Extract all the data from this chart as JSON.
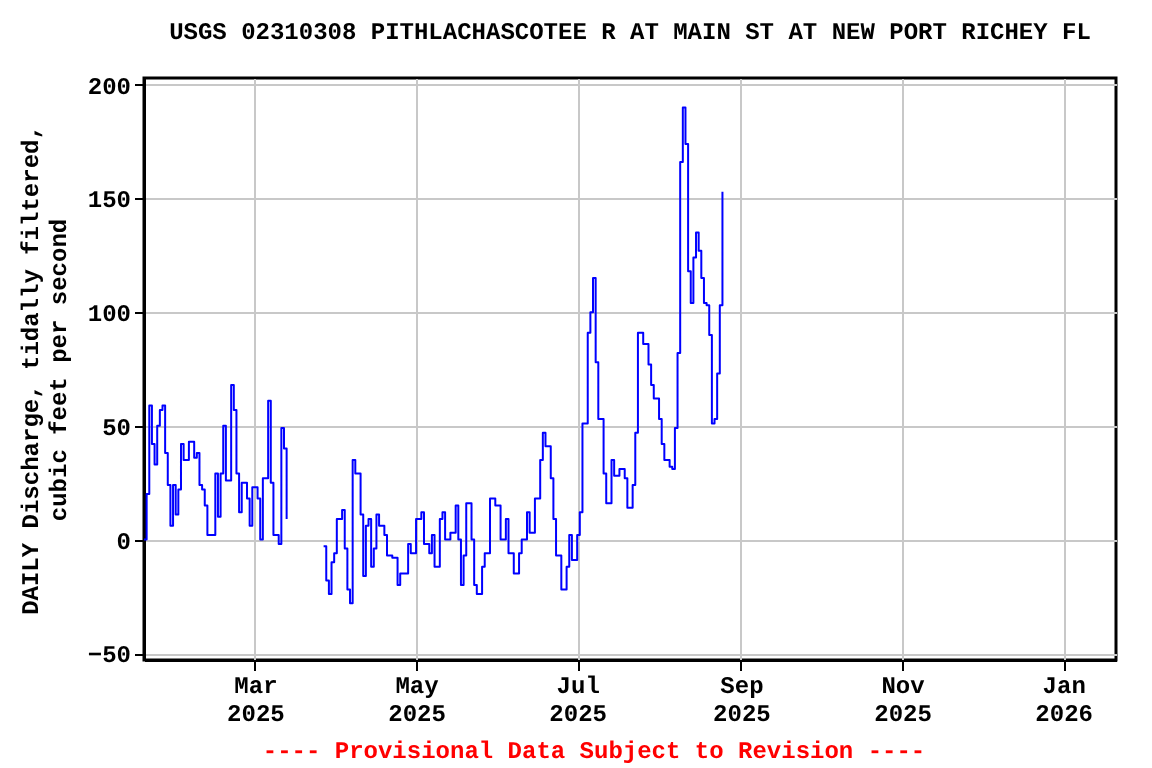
{
  "chart_data": {
    "type": "step",
    "title": "USGS 02310308 PITHLACHASCOTEE R AT MAIN ST AT NEW PORT RICHEY FL",
    "ylabel": "DAILY Discharge, tidally filtered,\ncubic feet per second",
    "annotations": [
      "---- Provisional Data Subject to Revision ----"
    ],
    "x": [
      "2025-01-18",
      "2025-01-19",
      "2025-01-20",
      "2025-01-21",
      "2025-01-22",
      "2025-01-23",
      "2025-01-24",
      "2025-01-25",
      "2025-01-26",
      "2025-01-27",
      "2025-01-28",
      "2025-01-29",
      "2025-01-30",
      "2025-01-31",
      "2025-02-01",
      "2025-02-02",
      "2025-02-04",
      "2025-02-06",
      "2025-02-07",
      "2025-02-08",
      "2025-02-09",
      "2025-02-10",
      "2025-02-11",
      "2025-02-13",
      "2025-02-14",
      "2025-02-15",
      "2025-02-16",
      "2025-02-17",
      "2025-02-18",
      "2025-02-20",
      "2025-02-21",
      "2025-02-22",
      "2025-02-23",
      "2025-02-24",
      "2025-02-26",
      "2025-02-27",
      "2025-02-28",
      "2025-03-02",
      "2025-03-03",
      "2025-03-04",
      "2025-03-06",
      "2025-03-07",
      "2025-03-08",
      "2025-03-10",
      "2025-03-11",
      "2025-03-12",
      "2025-03-13",
      "2025-03-20",
      "2025-03-27",
      "2025-03-28",
      "2025-03-29",
      "2025-03-30",
      "2025-03-31",
      "2025-04-01",
      "2025-04-03",
      "2025-04-04",
      "2025-04-05",
      "2025-04-06",
      "2025-04-07",
      "2025-04-08",
      "2025-04-10",
      "2025-04-11",
      "2025-04-12",
      "2025-04-13",
      "2025-04-14",
      "2025-04-15",
      "2025-04-16",
      "2025-04-17",
      "2025-04-19",
      "2025-04-20",
      "2025-04-22",
      "2025-04-24",
      "2025-04-25",
      "2025-04-28",
      "2025-04-29",
      "2025-05-01",
      "2025-05-03",
      "2025-05-04",
      "2025-05-06",
      "2025-05-07",
      "2025-05-08",
      "2025-05-10",
      "2025-05-11",
      "2025-05-12",
      "2025-05-14",
      "2025-05-16",
      "2025-05-17",
      "2025-05-18",
      "2025-05-19",
      "2025-05-20",
      "2025-05-22",
      "2025-05-23",
      "2025-05-24",
      "2025-05-26",
      "2025-05-27",
      "2025-05-29",
      "2025-05-31",
      "2025-06-02",
      "2025-06-04",
      "2025-06-05",
      "2025-06-07",
      "2025-06-09",
      "2025-06-10",
      "2025-06-12",
      "2025-06-13",
      "2025-06-15",
      "2025-06-17",
      "2025-06-18",
      "2025-06-19",
      "2025-06-21",
      "2025-06-22",
      "2025-06-23",
      "2025-06-25",
      "2025-06-27",
      "2025-06-28",
      "2025-06-29",
      "2025-07-01",
      "2025-07-02",
      "2025-07-03",
      "2025-07-05",
      "2025-07-06",
      "2025-07-07",
      "2025-07-08",
      "2025-07-09",
      "2025-07-11",
      "2025-07-12",
      "2025-07-14",
      "2025-07-15",
      "2025-07-17",
      "2025-07-19",
      "2025-07-20",
      "2025-07-22",
      "2025-07-23",
      "2025-07-24",
      "2025-07-25",
      "2025-07-26",
      "2025-07-28",
      "2025-07-29",
      "2025-07-30",
      "2025-08-01",
      "2025-08-02",
      "2025-08-03",
      "2025-08-05",
      "2025-08-06",
      "2025-08-07",
      "2025-08-08",
      "2025-08-09",
      "2025-08-10",
      "2025-08-11",
      "2025-08-12",
      "2025-08-13",
      "2025-08-14",
      "2025-08-15",
      "2025-08-16",
      "2025-08-17",
      "2025-08-18",
      "2025-08-19",
      "2025-08-20",
      "2025-08-21",
      "2025-08-22",
      "2025-08-23",
      "2025-08-24",
      "2025-08-25"
    ],
    "series": [
      {
        "color": "#0000ff",
        "values": [
          0,
          20,
          59,
          42,
          33,
          50,
          57,
          59,
          38,
          24,
          6,
          24,
          11,
          22,
          42,
          35,
          43,
          36,
          38,
          24,
          22,
          15,
          2,
          2,
          29,
          10,
          29,
          50,
          26,
          68,
          57,
          29,
          12,
          25,
          18,
          6,
          23,
          18,
          0,
          27,
          61,
          25,
          2,
          -2,
          49,
          40,
          9,
          null,
          -3,
          -18,
          -24,
          -10,
          -6,
          9,
          13,
          -4,
          -22,
          -28,
          35,
          29,
          11,
          -16,
          6,
          9,
          -12,
          -4,
          11,
          6,
          2,
          -7,
          -8,
          -20,
          -15,
          -2,
          -6,
          9,
          12,
          -2,
          -6,
          2,
          -12,
          9,
          12,
          0,
          3,
          15,
          0,
          -20,
          -7,
          16,
          0,
          -20,
          -24,
          -12,
          -6,
          18,
          15,
          0,
          9,
          -6,
          -15,
          -6,
          0,
          12,
          3,
          18,
          35,
          47,
          41,
          27,
          9,
          -7,
          -22,
          -12,
          2,
          -9,
          2,
          12,
          51,
          91,
          100,
          115,
          78,
          53,
          29,
          16,
          35,
          28,
          31,
          27,
          14,
          24,
          47,
          91,
          91,
          86,
          77,
          68,
          62,
          53,
          42,
          35,
          32,
          31,
          49,
          82,
          166,
          190,
          174,
          118,
          104,
          124,
          135,
          127,
          115,
          104,
          103,
          90,
          51,
          53,
          73,
          103,
          153
        ]
      }
    ],
    "xlim": [
      "2025-01-18",
      "2026-01-21"
    ],
    "xticks": [
      {
        "value": "2025-03-01",
        "label": "Mar 2025"
      },
      {
        "value": "2025-05-01",
        "label": "May 2025"
      },
      {
        "value": "2025-07-01",
        "label": "Jul 2025"
      },
      {
        "value": "2025-09-01",
        "label": "Sep 2025"
      },
      {
        "value": "2025-11-01",
        "label": "Nov 2025"
      },
      {
        "value": "2026-01-01",
        "label": "Jan 2026"
      }
    ],
    "ylim": [
      -53,
      203
    ],
    "yticks": [
      -50,
      0,
      50,
      100,
      150,
      200
    ],
    "grid": true
  }
}
